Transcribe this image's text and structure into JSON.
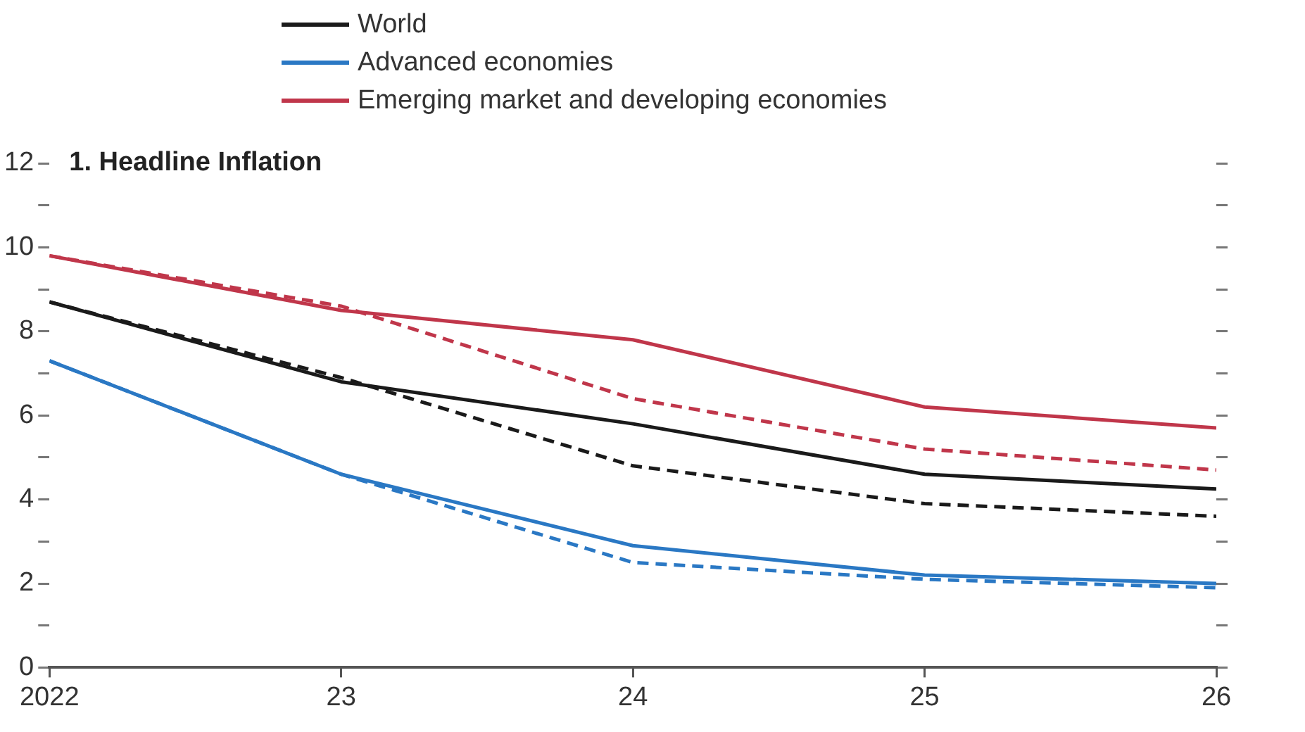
{
  "chart_data": {
    "type": "line",
    "title": "1. Headline Inflation",
    "x": [
      2022,
      2023,
      2024,
      2025,
      2026
    ],
    "series": [
      {
        "name": "World",
        "color": "#1a1a1a",
        "line_style": "solid",
        "values": [
          8.7,
          6.8,
          5.8,
          4.6,
          4.25
        ]
      },
      {
        "name": "Advanced economies",
        "color": "#2a78c4",
        "line_style": "solid",
        "values": [
          7.3,
          4.6,
          2.9,
          2.2,
          2.0
        ]
      },
      {
        "name": "Emerging market and developing economies",
        "color": "#c0364a",
        "line_style": "solid",
        "values": [
          9.8,
          8.5,
          7.8,
          6.2,
          5.7
        ]
      },
      {
        "color": "#1a1a1a",
        "line_style": "dashed",
        "values": [
          8.7,
          6.9,
          4.8,
          3.9,
          3.6
        ]
      },
      {
        "color": "#2a78c4",
        "line_style": "dashed",
        "values": [
          7.3,
          4.6,
          2.5,
          2.1,
          1.9
        ]
      },
      {
        "color": "#c0364a",
        "line_style": "dashed",
        "values": [
          9.8,
          8.6,
          6.4,
          5.2,
          4.7
        ]
      }
    ],
    "xlim": [
      2022,
      2026
    ],
    "xticks": [
      {
        "value": 2022,
        "label": "2022"
      },
      {
        "value": 2023,
        "label": "23"
      },
      {
        "value": 2024,
        "label": "24"
      },
      {
        "value": 2025,
        "label": "25"
      },
      {
        "value": 2026,
        "label": "26"
      }
    ],
    "ylim": [
      0,
      12
    ],
    "yticks": [
      0,
      {
        "value": 1,
        "label": null
      },
      2,
      {
        "value": 3,
        "label": null
      },
      4,
      {
        "value": 5,
        "label": null
      },
      6,
      {
        "value": 7,
        "label": null
      },
      8,
      {
        "value": 9,
        "label": null
      },
      10,
      {
        "value": 11,
        "label": null
      },
      12
    ],
    "grid": false,
    "legend": "top",
    "marker": "none"
  }
}
